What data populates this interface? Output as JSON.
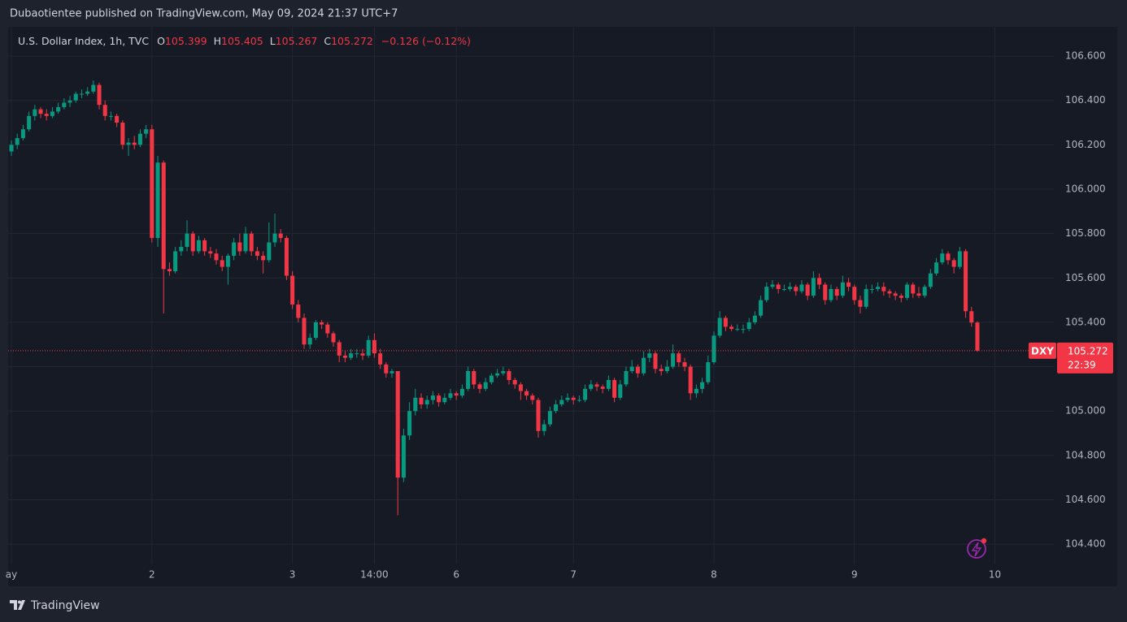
{
  "chart_data": {
    "type": "candlestick",
    "attribution": "Dubaotientee published on TradingView.com, May 09, 2024 21:37 UTC+7",
    "symbol": "U.S. Dollar Index, 1h, TVC",
    "ohlc_labels": [
      "O",
      "H",
      "L",
      "C"
    ],
    "change": "−0.126 (−0.12%)",
    "ticker": "DXY",
    "countdown": "22:39",
    "brand": "TradingView",
    "up_color": "#089981",
    "down_color": "#f23645",
    "grid": true,
    "xlim": [
      -0.56,
      178.06
    ],
    "xticks": [
      {
        "value": 0,
        "label": "ay"
      },
      {
        "value": 24,
        "label": "2"
      },
      {
        "value": 48,
        "label": "3"
      },
      {
        "value": 62,
        "label": "14:00"
      },
      {
        "value": 76,
        "label": "6"
      },
      {
        "value": 96,
        "label": "7"
      },
      {
        "value": 120,
        "label": "8"
      },
      {
        "value": 144,
        "label": "9"
      },
      {
        "value": 168,
        "label": "10"
      }
    ],
    "ylim": [
      104.309,
      106.732
    ],
    "yticks": [
      {
        "value": 104.4,
        "label": "104.400"
      },
      {
        "value": 104.6,
        "label": "104.600"
      },
      {
        "value": 104.8,
        "label": "104.800"
      },
      {
        "value": 105.0,
        "label": "105.000"
      },
      {
        "value": 105.2,
        "label": "105.200"
      },
      {
        "value": 105.4,
        "label": "105.400"
      },
      {
        "value": 105.6,
        "label": "105.600"
      },
      {
        "value": 105.8,
        "label": "105.800"
      },
      {
        "value": 106.0,
        "label": "106.000"
      },
      {
        "value": 106.2,
        "label": "106.200"
      },
      {
        "value": 106.4,
        "label": "106.400"
      },
      {
        "value": 106.6,
        "label": "106.600"
      }
    ],
    "candles": [
      [
        106.17,
        106.22,
        106.15,
        106.2
      ],
      [
        106.2,
        106.25,
        106.18,
        106.23
      ],
      [
        106.23,
        106.29,
        106.22,
        106.27
      ],
      [
        106.27,
        106.35,
        106.26,
        106.33
      ],
      [
        106.33,
        106.38,
        106.31,
        106.36
      ],
      [
        106.36,
        106.37,
        106.32,
        106.34
      ],
      [
        106.34,
        106.36,
        106.31,
        106.33
      ],
      [
        106.33,
        106.37,
        106.32,
        106.35
      ],
      [
        106.35,
        106.39,
        106.34,
        106.37
      ],
      [
        106.37,
        106.41,
        106.36,
        106.39
      ],
      [
        106.39,
        106.42,
        106.37,
        106.4
      ],
      [
        106.4,
        106.44,
        106.39,
        106.43
      ],
      [
        106.43,
        106.45,
        106.41,
        106.43
      ],
      [
        106.43,
        106.46,
        106.42,
        106.44
      ],
      [
        106.44,
        106.49,
        106.43,
        106.47
      ],
      [
        106.47,
        106.48,
        106.36,
        106.38
      ],
      [
        106.38,
        106.4,
        106.31,
        106.33
      ],
      [
        106.33,
        106.35,
        106.31,
        106.33
      ],
      [
        106.33,
        106.34,
        106.28,
        106.3
      ],
      [
        106.3,
        106.31,
        106.18,
        106.2
      ],
      [
        106.2,
        106.23,
        106.15,
        106.21
      ],
      [
        106.21,
        106.24,
        106.18,
        106.2
      ],
      [
        106.2,
        106.27,
        106.19,
        106.25
      ],
      [
        106.25,
        106.29,
        106.23,
        106.27
      ],
      [
        106.27,
        106.29,
        105.76,
        105.78
      ],
      [
        105.78,
        106.15,
        105.74,
        106.12
      ],
      [
        106.12,
        106.13,
        105.44,
        105.64
      ],
      [
        105.64,
        105.67,
        105.61,
        105.63
      ],
      [
        105.63,
        105.74,
        105.62,
        105.72
      ],
      [
        105.72,
        105.77,
        105.7,
        105.74
      ],
      [
        105.74,
        105.86,
        105.72,
        105.8
      ],
      [
        105.8,
        105.81,
        105.7,
        105.72
      ],
      [
        105.72,
        105.79,
        105.71,
        105.77
      ],
      [
        105.77,
        105.78,
        105.7,
        105.72
      ],
      [
        105.72,
        105.74,
        105.69,
        105.71
      ],
      [
        105.71,
        105.73,
        105.66,
        105.68
      ],
      [
        105.68,
        105.7,
        105.63,
        105.65
      ],
      [
        105.65,
        105.71,
        105.57,
        105.7
      ],
      [
        105.7,
        105.78,
        105.68,
        105.76
      ],
      [
        105.76,
        105.8,
        105.7,
        105.72
      ],
      [
        105.72,
        105.83,
        105.71,
        105.8
      ],
      [
        105.8,
        105.81,
        105.7,
        105.72
      ],
      [
        105.72,
        105.74,
        105.68,
        105.7
      ],
      [
        105.7,
        105.72,
        105.62,
        105.68
      ],
      [
        105.68,
        105.85,
        105.67,
        105.76
      ],
      [
        105.76,
        105.89,
        105.74,
        105.8
      ],
      [
        105.8,
        105.82,
        105.76,
        105.78
      ],
      [
        105.78,
        105.79,
        105.59,
        105.61
      ],
      [
        105.61,
        105.63,
        105.46,
        105.48
      ],
      [
        105.48,
        105.5,
        105.4,
        105.42
      ],
      [
        105.42,
        105.44,
        105.28,
        105.3
      ],
      [
        105.3,
        105.35,
        105.28,
        105.33
      ],
      [
        105.33,
        105.41,
        105.32,
        105.4
      ],
      [
        105.4,
        105.41,
        105.37,
        105.39
      ],
      [
        105.39,
        105.4,
        105.33,
        105.35
      ],
      [
        105.35,
        105.36,
        105.29,
        105.31
      ],
      [
        105.31,
        105.32,
        105.22,
        105.25
      ],
      [
        105.25,
        105.27,
        105.22,
        105.24
      ],
      [
        105.24,
        105.28,
        105.23,
        105.26
      ],
      [
        105.26,
        105.28,
        105.24,
        105.26
      ],
      [
        105.26,
        105.28,
        105.23,
        105.25
      ],
      [
        105.25,
        105.34,
        105.24,
        105.32
      ],
      [
        105.32,
        105.35,
        105.24,
        105.26
      ],
      [
        105.26,
        105.28,
        105.19,
        105.21
      ],
      [
        105.21,
        105.22,
        105.15,
        105.17
      ],
      [
        105.17,
        105.19,
        105.15,
        105.18
      ],
      [
        105.18,
        105.18,
        104.53,
        104.7
      ],
      [
        104.7,
        104.92,
        104.68,
        104.89
      ],
      [
        104.89,
        105.04,
        104.87,
        105.0
      ],
      [
        105.0,
        105.1,
        104.98,
        105.06
      ],
      [
        105.06,
        105.08,
        105.01,
        105.03
      ],
      [
        105.03,
        105.07,
        105.01,
        105.05
      ],
      [
        105.05,
        105.09,
        105.03,
        105.07
      ],
      [
        105.07,
        105.08,
        105.02,
        105.04
      ],
      [
        105.04,
        105.08,
        105.03,
        105.06
      ],
      [
        105.06,
        105.1,
        105.05,
        105.08
      ],
      [
        105.08,
        105.09,
        105.05,
        105.07
      ],
      [
        105.07,
        105.12,
        105.06,
        105.1
      ],
      [
        105.1,
        105.2,
        105.09,
        105.18
      ],
      [
        105.18,
        105.19,
        105.1,
        105.12
      ],
      [
        105.12,
        105.13,
        105.08,
        105.1
      ],
      [
        105.1,
        105.15,
        105.09,
        105.13
      ],
      [
        105.13,
        105.17,
        105.12,
        105.16
      ],
      [
        105.16,
        105.19,
        105.15,
        105.17
      ],
      [
        105.17,
        105.2,
        105.16,
        105.18
      ],
      [
        105.18,
        105.19,
        105.12,
        105.14
      ],
      [
        105.14,
        105.15,
        105.1,
        105.12
      ],
      [
        105.12,
        105.13,
        105.05,
        105.09
      ],
      [
        105.09,
        105.1,
        105.05,
        105.07
      ],
      [
        105.07,
        105.08,
        105.03,
        105.05
      ],
      [
        105.05,
        105.06,
        104.88,
        104.91
      ],
      [
        104.91,
        104.96,
        104.89,
        104.94
      ],
      [
        104.94,
        105.02,
        104.93,
        105.0
      ],
      [
        105.0,
        105.05,
        104.99,
        105.03
      ],
      [
        105.03,
        105.07,
        105.02,
        105.05
      ],
      [
        105.05,
        105.08,
        105.04,
        105.06
      ],
      [
        105.06,
        105.07,
        105.03,
        105.05
      ],
      [
        105.05,
        105.07,
        105.04,
        105.05
      ],
      [
        105.05,
        105.12,
        105.04,
        105.1
      ],
      [
        105.1,
        105.14,
        105.09,
        105.12
      ],
      [
        105.12,
        105.13,
        105.09,
        105.11
      ],
      [
        105.11,
        105.12,
        105.08,
        105.1
      ],
      [
        105.1,
        105.16,
        105.09,
        105.14
      ],
      [
        105.14,
        105.15,
        105.04,
        105.06
      ],
      [
        105.06,
        105.14,
        105.05,
        105.12
      ],
      [
        105.12,
        105.2,
        105.11,
        105.18
      ],
      [
        105.18,
        105.23,
        105.17,
        105.2
      ],
      [
        105.2,
        105.21,
        105.15,
        105.17
      ],
      [
        105.17,
        105.27,
        105.16,
        105.24
      ],
      [
        105.24,
        105.28,
        105.22,
        105.26
      ],
      [
        105.26,
        105.27,
        105.17,
        105.19
      ],
      [
        105.19,
        105.21,
        105.16,
        105.18
      ],
      [
        105.18,
        105.23,
        105.17,
        105.2
      ],
      [
        105.2,
        105.3,
        105.19,
        105.26
      ],
      [
        105.26,
        105.27,
        105.2,
        105.22
      ],
      [
        105.22,
        105.24,
        105.18,
        105.2
      ],
      [
        105.2,
        105.21,
        105.05,
        105.08
      ],
      [
        105.08,
        105.12,
        105.06,
        105.1
      ],
      [
        105.1,
        105.15,
        105.08,
        105.13
      ],
      [
        105.13,
        105.25,
        105.12,
        105.22
      ],
      [
        105.22,
        105.36,
        105.21,
        105.34
      ],
      [
        105.34,
        105.45,
        105.33,
        105.42
      ],
      [
        105.42,
        105.43,
        105.36,
        105.38
      ],
      [
        105.38,
        105.39,
        105.36,
        105.37
      ],
      [
        105.37,
        105.39,
        105.36,
        105.37
      ],
      [
        105.37,
        105.39,
        105.35,
        105.37
      ],
      [
        105.37,
        105.42,
        105.36,
        105.4
      ],
      [
        105.4,
        105.45,
        105.39,
        105.43
      ],
      [
        105.43,
        105.52,
        105.42,
        105.5
      ],
      [
        105.5,
        105.58,
        105.49,
        105.56
      ],
      [
        105.56,
        105.59,
        105.55,
        105.57
      ],
      [
        105.57,
        105.58,
        105.53,
        105.55
      ],
      [
        105.55,
        105.57,
        105.54,
        105.55
      ],
      [
        105.55,
        105.58,
        105.54,
        105.56
      ],
      [
        105.56,
        105.57,
        105.52,
        105.54
      ],
      [
        105.54,
        105.59,
        105.53,
        105.57
      ],
      [
        105.57,
        105.58,
        105.5,
        105.52
      ],
      [
        105.52,
        105.63,
        105.51,
        105.6
      ],
      [
        105.6,
        105.62,
        105.55,
        105.57
      ],
      [
        105.57,
        105.58,
        105.48,
        105.5
      ],
      [
        105.5,
        105.57,
        105.49,
        105.55
      ],
      [
        105.55,
        105.56,
        105.5,
        105.52
      ],
      [
        105.52,
        105.61,
        105.51,
        105.58
      ],
      [
        105.58,
        105.6,
        105.54,
        105.56
      ],
      [
        105.56,
        105.57,
        105.48,
        105.5
      ],
      [
        105.5,
        105.52,
        105.44,
        105.47
      ],
      [
        105.47,
        105.57,
        105.46,
        105.55
      ],
      [
        105.55,
        105.57,
        105.53,
        105.55
      ],
      [
        105.55,
        105.58,
        105.54,
        105.56
      ],
      [
        105.56,
        105.58,
        105.52,
        105.54
      ],
      [
        105.54,
        105.55,
        105.51,
        105.53
      ],
      [
        105.53,
        105.54,
        105.5,
        105.52
      ],
      [
        105.52,
        105.53,
        105.49,
        105.51
      ],
      [
        105.51,
        105.58,
        105.5,
        105.57
      ],
      [
        105.57,
        105.58,
        105.51,
        105.53
      ],
      [
        105.53,
        105.56,
        105.51,
        105.52
      ],
      [
        105.52,
        105.57,
        105.51,
        105.56
      ],
      [
        105.56,
        105.64,
        105.55,
        105.62
      ],
      [
        105.62,
        105.69,
        105.61,
        105.67
      ],
      [
        105.67,
        105.73,
        105.66,
        105.71
      ],
      [
        105.71,
        105.72,
        105.66,
        105.68
      ],
      [
        105.68,
        105.69,
        105.62,
        105.65
      ],
      [
        105.65,
        105.74,
        105.64,
        105.72
      ],
      [
        105.72,
        105.73,
        105.42,
        105.45
      ],
      [
        105.45,
        105.47,
        105.38,
        105.399
      ],
      [
        105.399,
        105.405,
        105.267,
        105.272
      ]
    ]
  }
}
